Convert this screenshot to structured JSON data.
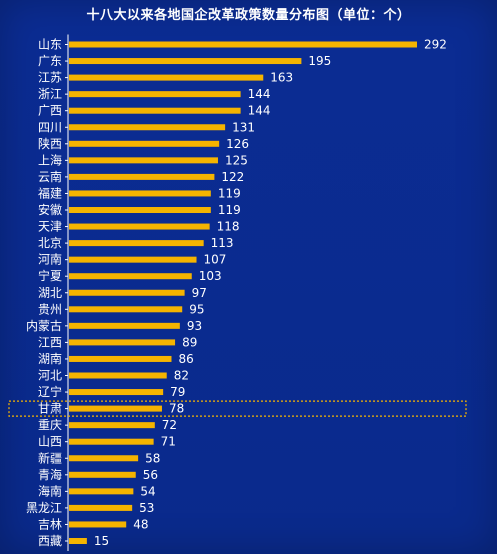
{
  "chart_data": {
    "type": "bar",
    "orientation": "horizontal",
    "title": "十八大以来各地国企改革政策数量分布图（单位：个）",
    "categories": [
      "山东",
      "广东",
      "江苏",
      "浙江",
      "广西",
      "四川",
      "陕西",
      "上海",
      "云南",
      "福建",
      "安徽",
      "天津",
      "北京",
      "河南",
      "宁夏",
      "湖北",
      "贵州",
      "内蒙古",
      "江西",
      "湖南",
      "河北",
      "辽宁",
      "甘肃",
      "重庆",
      "山西",
      "新疆",
      "青海",
      "海南",
      "黑龙江",
      "吉林",
      "西藏"
    ],
    "values": [
      292,
      195,
      163,
      144,
      144,
      131,
      126,
      125,
      122,
      119,
      119,
      118,
      113,
      107,
      103,
      97,
      95,
      93,
      89,
      86,
      82,
      79,
      78,
      72,
      71,
      58,
      56,
      54,
      53,
      48,
      15
    ],
    "highlighted_category": "甘肃",
    "xlim": [
      0,
      292
    ],
    "grid": false,
    "legend": "none",
    "colors": {
      "bar": "#f5b400",
      "background": "#0a2a8f",
      "text": "#ffffff",
      "axis": "#ffffff",
      "highlight_border": "#f5b400"
    }
  }
}
